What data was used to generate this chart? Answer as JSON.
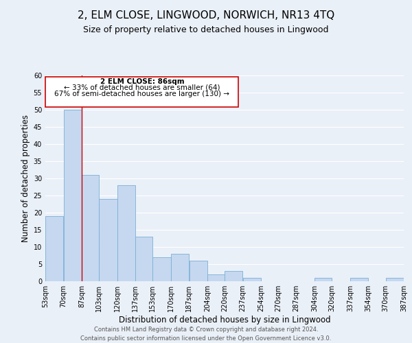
{
  "title": "2, ELM CLOSE, LINGWOOD, NORWICH, NR13 4TQ",
  "subtitle": "Size of property relative to detached houses in Lingwood",
  "xlabel": "Distribution of detached houses by size in Lingwood",
  "ylabel": "Number of detached properties",
  "bar_color": "#c5d8f0",
  "bar_edge_color": "#7aafd4",
  "bin_edges": [
    53,
    70,
    87,
    103,
    120,
    137,
    153,
    170,
    187,
    204,
    220,
    237,
    254,
    270,
    287,
    304,
    320,
    337,
    354,
    370,
    387
  ],
  "bin_labels": [
    "53sqm",
    "70sqm",
    "87sqm",
    "103sqm",
    "120sqm",
    "137sqm",
    "153sqm",
    "170sqm",
    "187sqm",
    "204sqm",
    "220sqm",
    "237sqm",
    "254sqm",
    "270sqm",
    "287sqm",
    "304sqm",
    "320sqm",
    "337sqm",
    "354sqm",
    "370sqm",
    "387sqm"
  ],
  "bar_heights": [
    19,
    50,
    31,
    24,
    28,
    13,
    7,
    8,
    6,
    2,
    3,
    1,
    0,
    0,
    0,
    1,
    0,
    1,
    0,
    1
  ],
  "vline_x": 87,
  "vline_color": "#cc0000",
  "ylim": [
    0,
    60
  ],
  "yticks": [
    0,
    5,
    10,
    15,
    20,
    25,
    30,
    35,
    40,
    45,
    50,
    55,
    60
  ],
  "annotation_title": "2 ELM CLOSE: 86sqm",
  "annotation_line1": "← 33% of detached houses are smaller (64)",
  "annotation_line2": "67% of semi-detached houses are larger (130) →",
  "footer_line1": "Contains HM Land Registry data © Crown copyright and database right 2024.",
  "footer_line2": "Contains public sector information licensed under the Open Government Licence v3.0.",
  "background_color": "#eaf0f8",
  "grid_color": "#ffffff",
  "title_fontsize": 11,
  "subtitle_fontsize": 9,
  "axis_label_fontsize": 8.5,
  "tick_fontsize": 7,
  "annotation_fontsize": 7.5,
  "footer_fontsize": 6
}
